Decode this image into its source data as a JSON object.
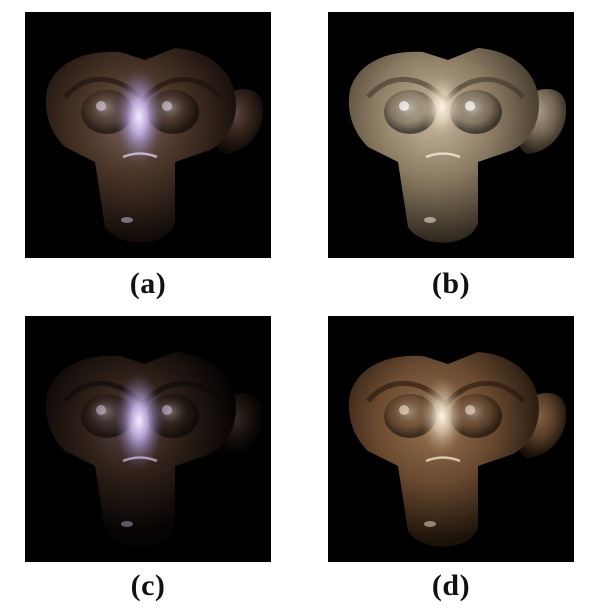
{
  "figure": {
    "panels": [
      {
        "label": "(a)",
        "variant": "dim-purple-highlight",
        "tone": "#4a3528"
      },
      {
        "label": "(b)",
        "variant": "bright-pale-diffuse",
        "tone": "#8a7a62"
      },
      {
        "label": "(c)",
        "variant": "darkest-purple-highlight",
        "tone": "#2f2118"
      },
      {
        "label": "(d)",
        "variant": "warm-wood-lit",
        "tone": "#6a4a30"
      }
    ]
  }
}
